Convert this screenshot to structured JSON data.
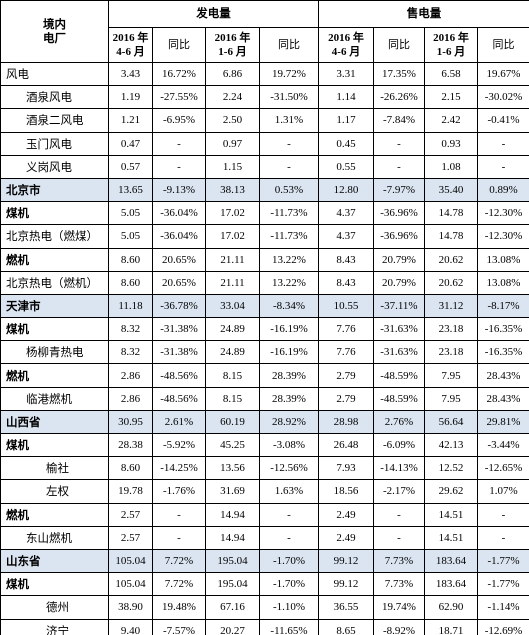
{
  "header": {
    "corner": [
      "境内",
      "电厂"
    ],
    "groups": [
      "发电量",
      "售电量"
    ],
    "columns": [
      [
        "2016 年",
        "4-6 月"
      ],
      [
        "同比"
      ],
      [
        "2016 年",
        "1-6 月"
      ],
      [
        "同比"
      ],
      [
        "2016 年",
        "4-6 月"
      ],
      [
        "同比"
      ],
      [
        "2016 年",
        "1-6 月"
      ],
      [
        "同比"
      ]
    ]
  },
  "table": {
    "rows": [
      [
        "风电",
        "3.43",
        "16.72%",
        "6.86",
        "19.72%",
        "3.31",
        "17.35%",
        "6.58",
        "19.67%"
      ],
      [
        "酒泉风电",
        "1.19",
        "-27.55%",
        "2.24",
        "-31.50%",
        "1.14",
        "-26.26%",
        "2.15",
        "-30.02%"
      ],
      [
        "酒泉二风电",
        "1.21",
        "-6.95%",
        "2.50",
        "1.31%",
        "1.17",
        "-7.84%",
        "2.42",
        "-0.41%"
      ],
      [
        "玉门风电",
        "0.47",
        "-",
        "0.97",
        "-",
        "0.45",
        "-",
        "0.93",
        "-"
      ],
      [
        "义岗风电",
        "0.57",
        "-",
        "1.15",
        "-",
        "0.55",
        "-",
        "1.08",
        "-"
      ],
      [
        "北京市",
        "13.65",
        "-9.13%",
        "38.13",
        "0.53%",
        "12.80",
        "-7.97%",
        "35.40",
        "0.89%"
      ],
      [
        "煤机",
        "5.05",
        "-36.04%",
        "17.02",
        "-11.73%",
        "4.37",
        "-36.96%",
        "14.78",
        "-12.30%"
      ],
      [
        "北京热电（燃煤）",
        "5.05",
        "-36.04%",
        "17.02",
        "-11.73%",
        "4.37",
        "-36.96%",
        "14.78",
        "-12.30%"
      ],
      [
        "燃机",
        "8.60",
        "20.65%",
        "21.11",
        "13.22%",
        "8.43",
        "20.79%",
        "20.62",
        "13.08%"
      ],
      [
        "北京热电（燃机）",
        "8.60",
        "20.65%",
        "21.11",
        "13.22%",
        "8.43",
        "20.79%",
        "20.62",
        "13.08%"
      ],
      [
        "天津市",
        "11.18",
        "-36.78%",
        "33.04",
        "-8.34%",
        "10.55",
        "-37.11%",
        "31.12",
        "-8.17%"
      ],
      [
        "煤机",
        "8.32",
        "-31.38%",
        "24.89",
        "-16.19%",
        "7.76",
        "-31.63%",
        "23.18",
        "-16.35%"
      ],
      [
        "杨柳青热电",
        "8.32",
        "-31.38%",
        "24.89",
        "-16.19%",
        "7.76",
        "-31.63%",
        "23.18",
        "-16.35%"
      ],
      [
        "燃机",
        "2.86",
        "-48.56%",
        "8.15",
        "28.39%",
        "2.79",
        "-48.59%",
        "7.95",
        "28.43%"
      ],
      [
        "临港燃机",
        "2.86",
        "-48.56%",
        "8.15",
        "28.39%",
        "2.79",
        "-48.59%",
        "7.95",
        "28.43%"
      ],
      [
        "山西省",
        "30.95",
        "2.61%",
        "60.19",
        "28.92%",
        "28.98",
        "2.76%",
        "56.64",
        "29.81%"
      ],
      [
        "煤机",
        "28.38",
        "-5.92%",
        "45.25",
        "-3.08%",
        "26.48",
        "-6.09%",
        "42.13",
        "-3.44%"
      ],
      [
        "榆社",
        "8.60",
        "-14.25%",
        "13.56",
        "-12.56%",
        "7.93",
        "-14.13%",
        "12.52",
        "-12.65%"
      ],
      [
        "左权",
        "19.78",
        "-1.76%",
        "31.69",
        "1.63%",
        "18.56",
        "-2.17%",
        "29.62",
        "1.07%"
      ],
      [
        "燃机",
        "2.57",
        "-",
        "14.94",
        "-",
        "2.49",
        "-",
        "14.51",
        "-"
      ],
      [
        "东山燃机",
        "2.57",
        "-",
        "14.94",
        "-",
        "2.49",
        "-",
        "14.51",
        "-"
      ],
      [
        "山东省",
        "105.04",
        "7.72%",
        "195.04",
        "-1.70%",
        "99.12",
        "7.73%",
        "183.64",
        "-1.77%"
      ],
      [
        "煤机",
        "105.04",
        "7.72%",
        "195.04",
        "-1.70%",
        "99.12",
        "7.73%",
        "183.64",
        "-1.77%"
      ],
      [
        "德州",
        "38.90",
        "19.48%",
        "67.16",
        "-1.10%",
        "36.55",
        "19.74%",
        "62.90",
        "-1.14%"
      ],
      [
        "济宁",
        "9.40",
        "-7.57%",
        "20.27",
        "-11.65%",
        "8.65",
        "-8.92%",
        "18.71",
        "-12.69%"
      ]
    ]
  }
}
